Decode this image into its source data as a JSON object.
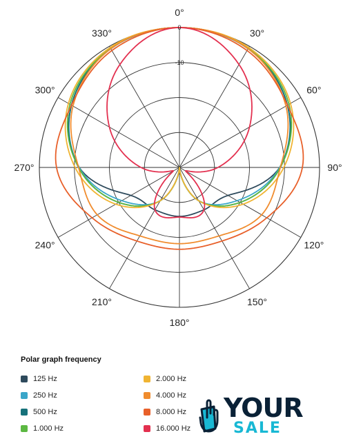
{
  "chart_data": {
    "type": "polar",
    "title": "",
    "angle_unit": "degrees",
    "angle_ticks": [
      "0°",
      "30°",
      "60°",
      "90°",
      "120°",
      "150°",
      "180°",
      "210°",
      "240°",
      "270°",
      "300°",
      "330°"
    ],
    "radial_labels": [
      "0",
      "-10"
    ],
    "radial_range_db": [
      -40,
      0
    ],
    "grid": true,
    "angles": [
      0,
      30,
      60,
      90,
      120,
      150,
      180,
      210,
      240,
      270,
      300,
      330
    ],
    "series": [
      {
        "name": "125 Hz",
        "color": "#2e4a5c",
        "values_db": [
          0,
          -0.8,
          -4.4,
          -11.4,
          -24,
          -26,
          -26,
          -26,
          -24,
          -11.4,
          -4.4,
          -0.8
        ]
      },
      {
        "name": "250 Hz",
        "color": "#3aa6c9",
        "values_db": [
          0,
          -0.8,
          -4.4,
          -11.4,
          -21,
          -29,
          -40,
          -29,
          -21,
          -11.4,
          -4.4,
          -0.8
        ]
      },
      {
        "name": "500 Hz",
        "color": "#16717a",
        "values_db": [
          0,
          -0.8,
          -4.4,
          -11.2,
          -20,
          -29,
          -40,
          -29,
          -20,
          -11.2,
          -4.4,
          -0.8
        ]
      },
      {
        "name": "1.000 Hz",
        "color": "#5cb842",
        "values_db": [
          0,
          -0.7,
          -3.9,
          -11.2,
          -20,
          -29,
          -40,
          -29,
          -20,
          -11.2,
          -3.9,
          -0.7
        ]
      },
      {
        "name": "2.000 Hz",
        "color": "#f0b432",
        "values_db": [
          0,
          -0.4,
          -3.4,
          -10.2,
          -19,
          -29,
          -40,
          -29,
          -19,
          -10.2,
          -3.4,
          -0.4
        ]
      },
      {
        "name": "4.000 Hz",
        "color": "#f08c2e",
        "values_db": [
          0,
          -0.8,
          -4.9,
          -11.2,
          -12.9,
          -17.4,
          -18.2,
          -17.4,
          -12.9,
          -11.2,
          -4.9,
          -0.8
        ]
      },
      {
        "name": "8.000 Hz",
        "color": "#e8602a",
        "values_db": [
          0,
          -1.4,
          -4.4,
          -4.9,
          -11.2,
          -15.7,
          -16.6,
          -15.7,
          -11.2,
          -4.9,
          -4.4,
          -1.4
        ]
      },
      {
        "name": "16.000 Hz",
        "color": "#e3304f",
        "values_db": [
          0,
          -6,
          -16.9,
          -29,
          -38,
          -26,
          -25.8,
          -26,
          -38,
          -29,
          -16.9,
          -6
        ]
      }
    ]
  },
  "legend": {
    "title": "Polar graph frequency",
    "items": [
      {
        "label": "125 Hz",
        "color": "#2e4a5c"
      },
      {
        "label": "250 Hz",
        "color": "#3aa6c9"
      },
      {
        "label": "500 Hz",
        "color": "#16717a"
      },
      {
        "label": "1.000 Hz",
        "color": "#5cb842"
      },
      {
        "label": "2.000 Hz",
        "color": "#f0b432"
      },
      {
        "label": "4.000 Hz",
        "color": "#f08c2e"
      },
      {
        "label": "8.000 Hz",
        "color": "#e8602a"
      },
      {
        "label": "16.000 Hz",
        "color": "#e3304f"
      }
    ]
  },
  "watermark": {
    "line1": "YOUR",
    "line2": "SALE",
    "icon": "hand-pointer-cart-icon",
    "colors": {
      "dark": "#0a2136",
      "accent": "#18b8d4"
    }
  }
}
